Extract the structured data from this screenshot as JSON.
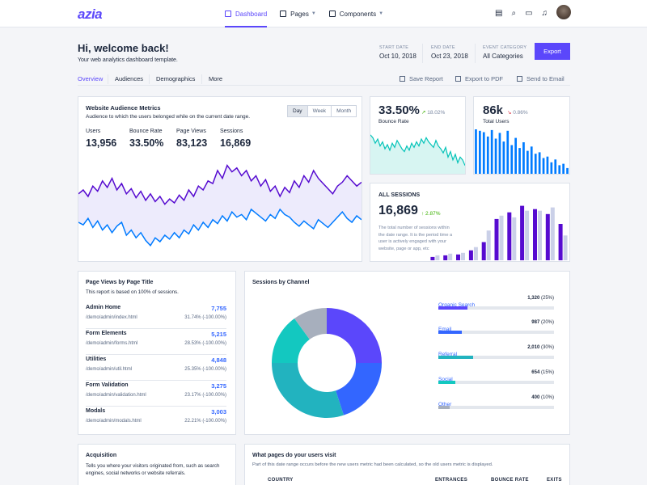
{
  "header": {
    "logo": "azia",
    "nav": [
      {
        "label": "Dashboard"
      },
      {
        "label": "Pages"
      },
      {
        "label": "Components"
      }
    ]
  },
  "welcome": {
    "title": "Hi, welcome back!",
    "subtitle": "Your web analytics dashboard template."
  },
  "meta": {
    "start_label": "START DATE",
    "start_value": "Oct 10, 2018",
    "end_label": "END DATE",
    "end_value": "Oct 23, 2018",
    "category_label": "EVENT CATEGORY",
    "category_value": "All Categories"
  },
  "export_label": "Export",
  "tabs": [
    "Overview",
    "Audiences",
    "Demographics",
    "More"
  ],
  "actions": [
    "Save Report",
    "Export to PDF",
    "Send to Email"
  ],
  "audience": {
    "title": "Website Audience Metrics",
    "subtitle": "Audience to which the users belonged while on the current date range.",
    "periods": [
      "Day",
      "Week",
      "Month"
    ],
    "stats": [
      {
        "label": "Users",
        "value": "13,956"
      },
      {
        "label": "Bounce Rate",
        "value": "33.50%"
      },
      {
        "label": "Page Views",
        "value": "83,123"
      },
      {
        "label": "Sessions",
        "value": "16,869"
      }
    ]
  },
  "bounce": {
    "value": "33.50%",
    "delta": "18.02%",
    "label": "Bounce Rate"
  },
  "total_users": {
    "value": "86k",
    "delta": "0.86%",
    "label": "Total Users"
  },
  "sessions": {
    "title": "ALL SESSIONS",
    "value": "16,869",
    "delta": "↑ 2.87%",
    "desc": "The total number of sessions within the date range. It is the period time a user is actively engaged with your website, page or app, etc"
  },
  "page_views": {
    "title": "Page Views by Page Title",
    "subtitle": "This report is based on 100% of sessions.",
    "rows": [
      {
        "title": "Admin Home",
        "url": "/demo/admin/index.html",
        "value": "7,755",
        "pct": "31.74% (-100.00%)"
      },
      {
        "title": "Form Elements",
        "url": "/demo/admin/forms.html",
        "value": "5,215",
        "pct": "28.53% (-100.00%)"
      },
      {
        "title": "Utilities",
        "url": "/demo/admin/util.html",
        "value": "4,848",
        "pct": "25.35% (-100.00%)"
      },
      {
        "title": "Form Validation",
        "url": "/demo/admin/validation.html",
        "value": "3,275",
        "pct": "23.17% (-100.00%)"
      },
      {
        "title": "Modals",
        "url": "/demo/admin/modals.html",
        "value": "3,003",
        "pct": "22.21% (-100.00%)"
      }
    ]
  },
  "channels": {
    "title": "Sessions by Channel",
    "rows": [
      {
        "name": "Organic Search",
        "value": "1,320",
        "pct": "(25%)",
        "fill": 0.25,
        "color": "#5b47fb"
      },
      {
        "name": "Email",
        "value": "987",
        "pct": "(20%)",
        "fill": 0.2,
        "color": "#3366ff"
      },
      {
        "name": "Referral",
        "value": "2,010",
        "pct": "(30%)",
        "fill": 0.3,
        "color": "#22b3bf"
      },
      {
        "name": "Social",
        "value": "654",
        "pct": "(15%)",
        "fill": 0.15,
        "color": "#13c8c0"
      },
      {
        "name": "Other",
        "value": "400",
        "pct": "(10%)",
        "fill": 0.1,
        "color": "#a7afbd"
      }
    ]
  },
  "acquisition": {
    "title": "Acquisition",
    "desc1": "Tells you where your visitors originated from, such as search",
    "desc2": "engines, social networks or website referrals."
  },
  "visits": {
    "title": "What pages do your users visit",
    "desc": "Part of this date range occurs before the new users metric had been calculated, so the old users metric is displayed.",
    "columns": [
      "COUNTRY",
      "ENTRANCES",
      "BOUNCE RATE",
      "EXITS"
    ]
  },
  "chart_data": [
    {
      "type": "area",
      "title": "Website Audience Metrics",
      "series": [
        {
          "values": [
            52,
            55,
            50,
            58,
            54,
            62,
            57,
            64,
            55,
            60,
            52,
            56,
            49,
            54,
            47,
            52,
            46,
            50,
            44,
            48,
            45,
            51,
            47,
            55,
            50,
            58,
            55,
            62,
            60,
            70,
            64,
            74,
            69,
            72,
            66,
            70,
            62,
            66,
            58,
            63,
            54,
            58,
            50,
            57,
            53,
            62,
            57,
            66,
            61,
            70,
            64,
            60,
            56,
            52,
            58,
            61,
            66,
            62,
            58,
            61
          ]
        },
        {
          "values": [
            30,
            28,
            33,
            26,
            31,
            24,
            28,
            22,
            27,
            30,
            20,
            24,
            18,
            22,
            16,
            12,
            18,
            15,
            20,
            17,
            22,
            18,
            24,
            21,
            28,
            24,
            30,
            26,
            32,
            29,
            35,
            31,
            38,
            34,
            36,
            32,
            40,
            37,
            34,
            31,
            36,
            33,
            40,
            36,
            34,
            30,
            27,
            31,
            28,
            25,
            32,
            29,
            26,
            30,
            34,
            38,
            33,
            30,
            35,
            32
          ]
        }
      ]
    },
    {
      "type": "area",
      "title": "Bounce Rate",
      "values": [
        28,
        26,
        22,
        25,
        20,
        23,
        18,
        21,
        17,
        22,
        19,
        24,
        21,
        18,
        16,
        20,
        17,
        22,
        19,
        23,
        20,
        25,
        22,
        26,
        23,
        21,
        19,
        24,
        20,
        18,
        15,
        19,
        12,
        16,
        10,
        14,
        8,
        12,
        10,
        6
      ]
    },
    {
      "type": "bar",
      "title": "Total Users",
      "values": [
        62,
        60,
        58,
        52,
        61,
        49,
        57,
        45,
        60,
        40,
        50,
        36,
        44,
        32,
        38,
        28,
        30,
        22,
        24,
        16,
        20,
        12,
        14,
        8
      ]
    },
    {
      "type": "bar",
      "title": "ALL SESSIONS",
      "series": [
        {
          "values": [
            4,
            6,
            7,
            12,
            22,
            50,
            58,
            66,
            62,
            56,
            44
          ]
        },
        {
          "values": [
            6,
            8,
            9,
            16,
            36,
            54,
            52,
            60,
            60,
            64,
            30
          ]
        }
      ]
    },
    {
      "type": "pie",
      "title": "Sessions by Channel",
      "values": [
        25,
        20,
        30,
        15,
        10
      ],
      "colors": [
        "#5b47fb",
        "#3366ff",
        "#22b3bf",
        "#13c8c0",
        "#a7afbd"
      ]
    }
  ]
}
